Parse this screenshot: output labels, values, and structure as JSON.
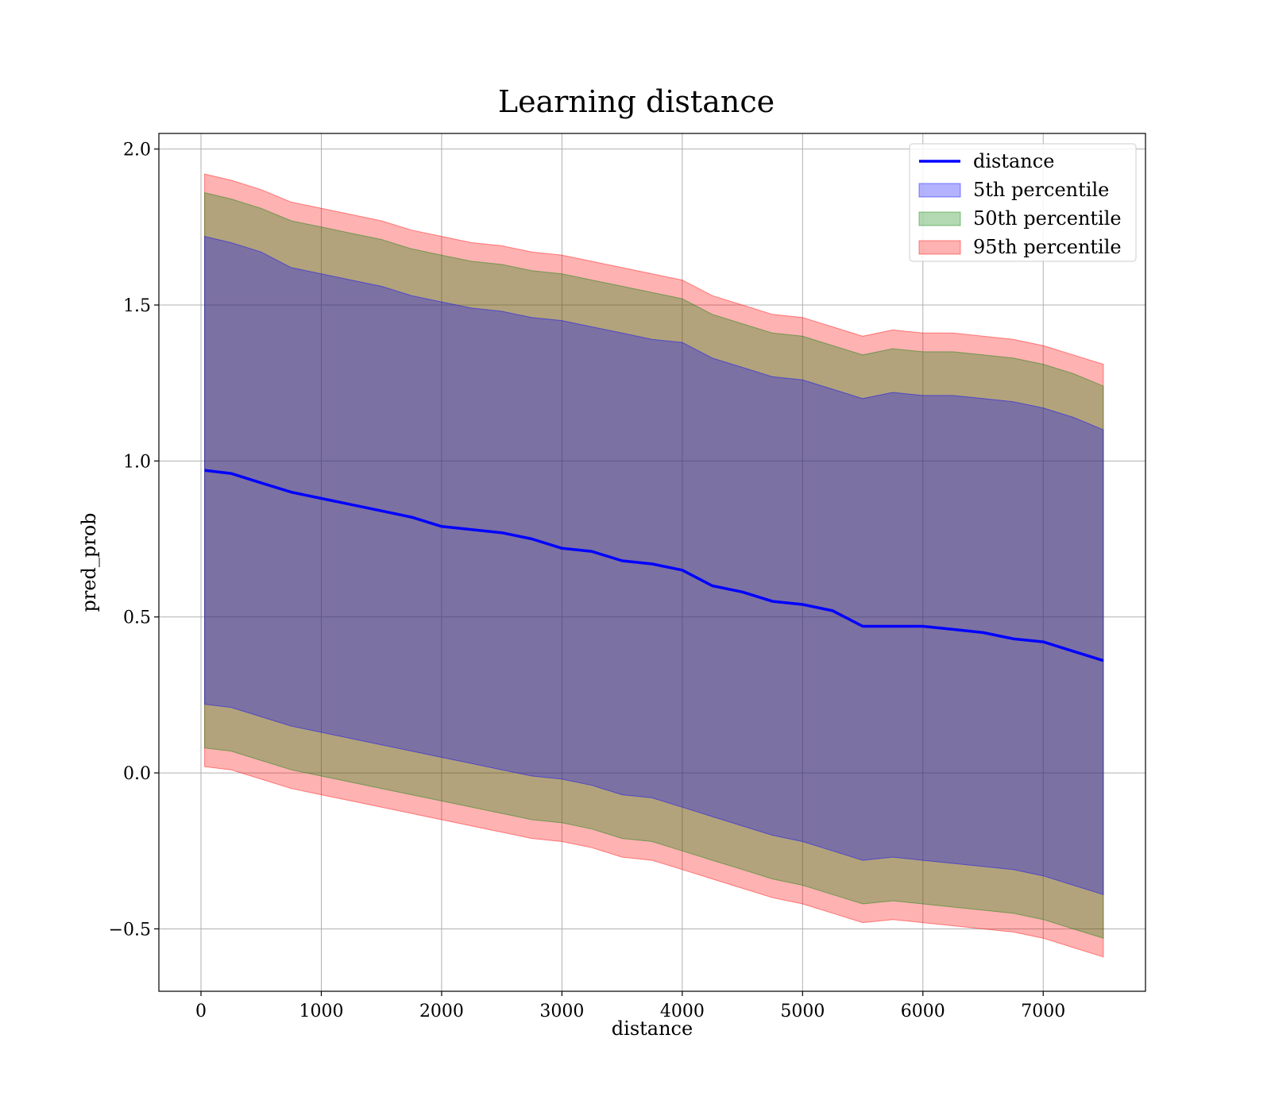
{
  "chart_data": {
    "type": "area",
    "title": "Learning distance",
    "xlabel": "distance",
    "ylabel": "pred_prob",
    "xlim": [
      -350,
      7850
    ],
    "ylim": [
      -0.7,
      2.05
    ],
    "xticks": [
      0,
      1000,
      2000,
      3000,
      4000,
      5000,
      6000,
      7000
    ],
    "yticks": [
      2.0,
      1.5,
      1.0,
      0.5,
      0.0,
      -0.5
    ],
    "grid": true,
    "legend_position": "top-right",
    "x": [
      30,
      250,
      500,
      750,
      1000,
      1250,
      1500,
      1750,
      2000,
      2250,
      2500,
      2750,
      3000,
      3250,
      3500,
      3750,
      4000,
      4250,
      4500,
      4750,
      5000,
      5250,
      5500,
      5750,
      6000,
      6250,
      6500,
      6750,
      7000,
      7250,
      7500
    ],
    "series": [
      {
        "name": "distance",
        "kind": "line",
        "color": "#0000ff",
        "values": [
          0.97,
          0.96,
          0.93,
          0.9,
          0.88,
          0.86,
          0.84,
          0.82,
          0.79,
          0.78,
          0.77,
          0.75,
          0.72,
          0.71,
          0.68,
          0.67,
          0.65,
          0.6,
          0.58,
          0.55,
          0.54,
          0.52,
          0.47,
          0.47,
          0.47,
          0.46,
          0.45,
          0.43,
          0.42,
          0.39,
          0.36
        ]
      },
      {
        "name": "5th percentile",
        "kind": "band",
        "color": "#0000ff",
        "upper": [
          1.72,
          1.7,
          1.67,
          1.62,
          1.6,
          1.58,
          1.56,
          1.53,
          1.51,
          1.49,
          1.48,
          1.46,
          1.45,
          1.43,
          1.41,
          1.39,
          1.38,
          1.33,
          1.3,
          1.27,
          1.26,
          1.23,
          1.2,
          1.22,
          1.21,
          1.21,
          1.2,
          1.19,
          1.17,
          1.14,
          1.1
        ],
        "lower": [
          0.22,
          0.21,
          0.18,
          0.15,
          0.13,
          0.11,
          0.09,
          0.07,
          0.05,
          0.03,
          0.01,
          -0.01,
          -0.02,
          -0.04,
          -0.07,
          -0.08,
          -0.11,
          -0.14,
          -0.17,
          -0.2,
          -0.22,
          -0.25,
          -0.28,
          -0.27,
          -0.28,
          -0.29,
          -0.3,
          -0.31,
          -0.33,
          -0.36,
          -0.39
        ]
      },
      {
        "name": "50th percentile",
        "kind": "band",
        "color": "#008000",
        "upper": [
          1.86,
          1.84,
          1.81,
          1.77,
          1.75,
          1.73,
          1.71,
          1.68,
          1.66,
          1.64,
          1.63,
          1.61,
          1.6,
          1.58,
          1.56,
          1.54,
          1.52,
          1.47,
          1.44,
          1.41,
          1.4,
          1.37,
          1.34,
          1.36,
          1.35,
          1.35,
          1.34,
          1.33,
          1.31,
          1.28,
          1.24
        ],
        "lower": [
          0.08,
          0.07,
          0.04,
          0.01,
          -0.01,
          -0.03,
          -0.05,
          -0.07,
          -0.09,
          -0.11,
          -0.13,
          -0.15,
          -0.16,
          -0.18,
          -0.21,
          -0.22,
          -0.25,
          -0.28,
          -0.31,
          -0.34,
          -0.36,
          -0.39,
          -0.42,
          -0.41,
          -0.42,
          -0.43,
          -0.44,
          -0.45,
          -0.47,
          -0.5,
          -0.53
        ]
      },
      {
        "name": "95th percentile",
        "kind": "band",
        "color": "#ff0000",
        "upper": [
          1.92,
          1.9,
          1.87,
          1.83,
          1.81,
          1.79,
          1.77,
          1.74,
          1.72,
          1.7,
          1.69,
          1.67,
          1.66,
          1.64,
          1.62,
          1.6,
          1.58,
          1.53,
          1.5,
          1.47,
          1.46,
          1.43,
          1.4,
          1.42,
          1.41,
          1.41,
          1.4,
          1.39,
          1.37,
          1.34,
          1.31
        ],
        "lower": [
          0.02,
          0.01,
          -0.02,
          -0.05,
          -0.07,
          -0.09,
          -0.11,
          -0.13,
          -0.15,
          -0.17,
          -0.19,
          -0.21,
          -0.22,
          -0.24,
          -0.27,
          -0.28,
          -0.31,
          -0.34,
          -0.37,
          -0.4,
          -0.42,
          -0.45,
          -0.48,
          -0.47,
          -0.48,
          -0.49,
          -0.5,
          -0.51,
          -0.53,
          -0.56,
          -0.59
        ]
      }
    ]
  }
}
